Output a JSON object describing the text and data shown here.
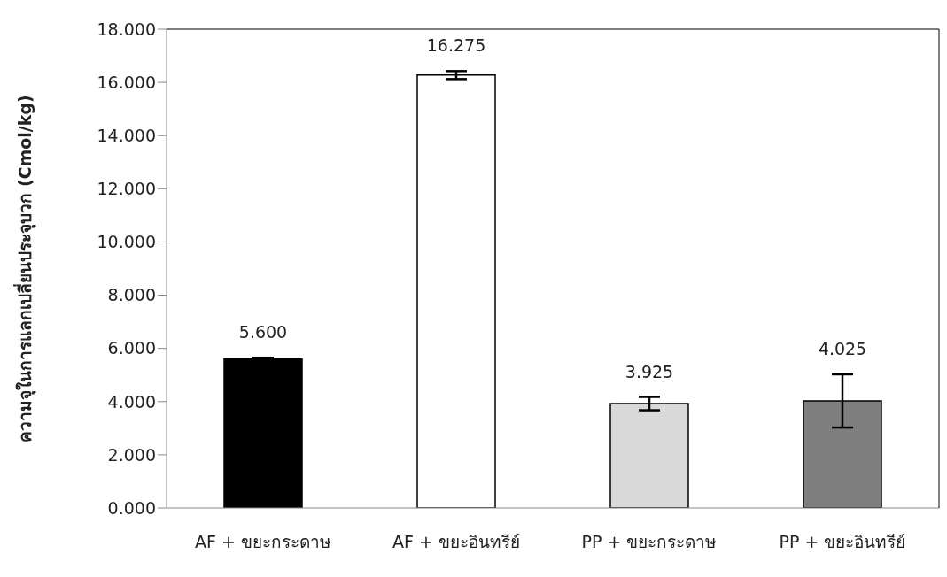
{
  "chart_data": {
    "type": "bar",
    "ylabel": "ความจุในการแลกเปลี่ยนประจุบวก (Cmol/kg)",
    "categories": [
      "AF + ขยะกระดาษ",
      "AF + ขยะอินทรีย์",
      "PP + ขยะกระดาษ",
      "PP + ขยะอินทรีย์"
    ],
    "values": [
      5.6,
      16.275,
      3.925,
      4.025
    ],
    "colors": [
      "#000000",
      "#ffffff",
      "#d9d9d9",
      "#7f7f7f"
    ],
    "errors": [
      0.05,
      0.15,
      0.25,
      1.0
    ],
    "value_labels": [
      "5.600",
      "16.275",
      "3.925",
      "4.025"
    ],
    "ylim": [
      0,
      18
    ],
    "yticks": [
      {
        "value": 0,
        "label": "0.000"
      },
      {
        "value": 2,
        "label": "2.000"
      },
      {
        "value": 4,
        "label": "4.000"
      },
      {
        "value": 6,
        "label": "6.000"
      },
      {
        "value": 8,
        "label": "8.000"
      },
      {
        "value": 10,
        "label": "10.000"
      },
      {
        "value": 12,
        "label": "12.000"
      },
      {
        "value": 14,
        "label": "14.000"
      },
      {
        "value": 16,
        "label": "16.000"
      },
      {
        "value": 18,
        "label": "18.000"
      }
    ],
    "grid": false,
    "legend": false
  }
}
